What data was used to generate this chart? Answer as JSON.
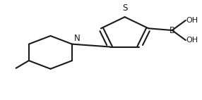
{
  "bg_color": "#ffffff",
  "line_color": "#1a1a1a",
  "line_width": 1.5,
  "font_size": 8.5,
  "xlim": [
    0,
    1.4
  ],
  "ylim": [
    0.0,
    1.05
  ]
}
